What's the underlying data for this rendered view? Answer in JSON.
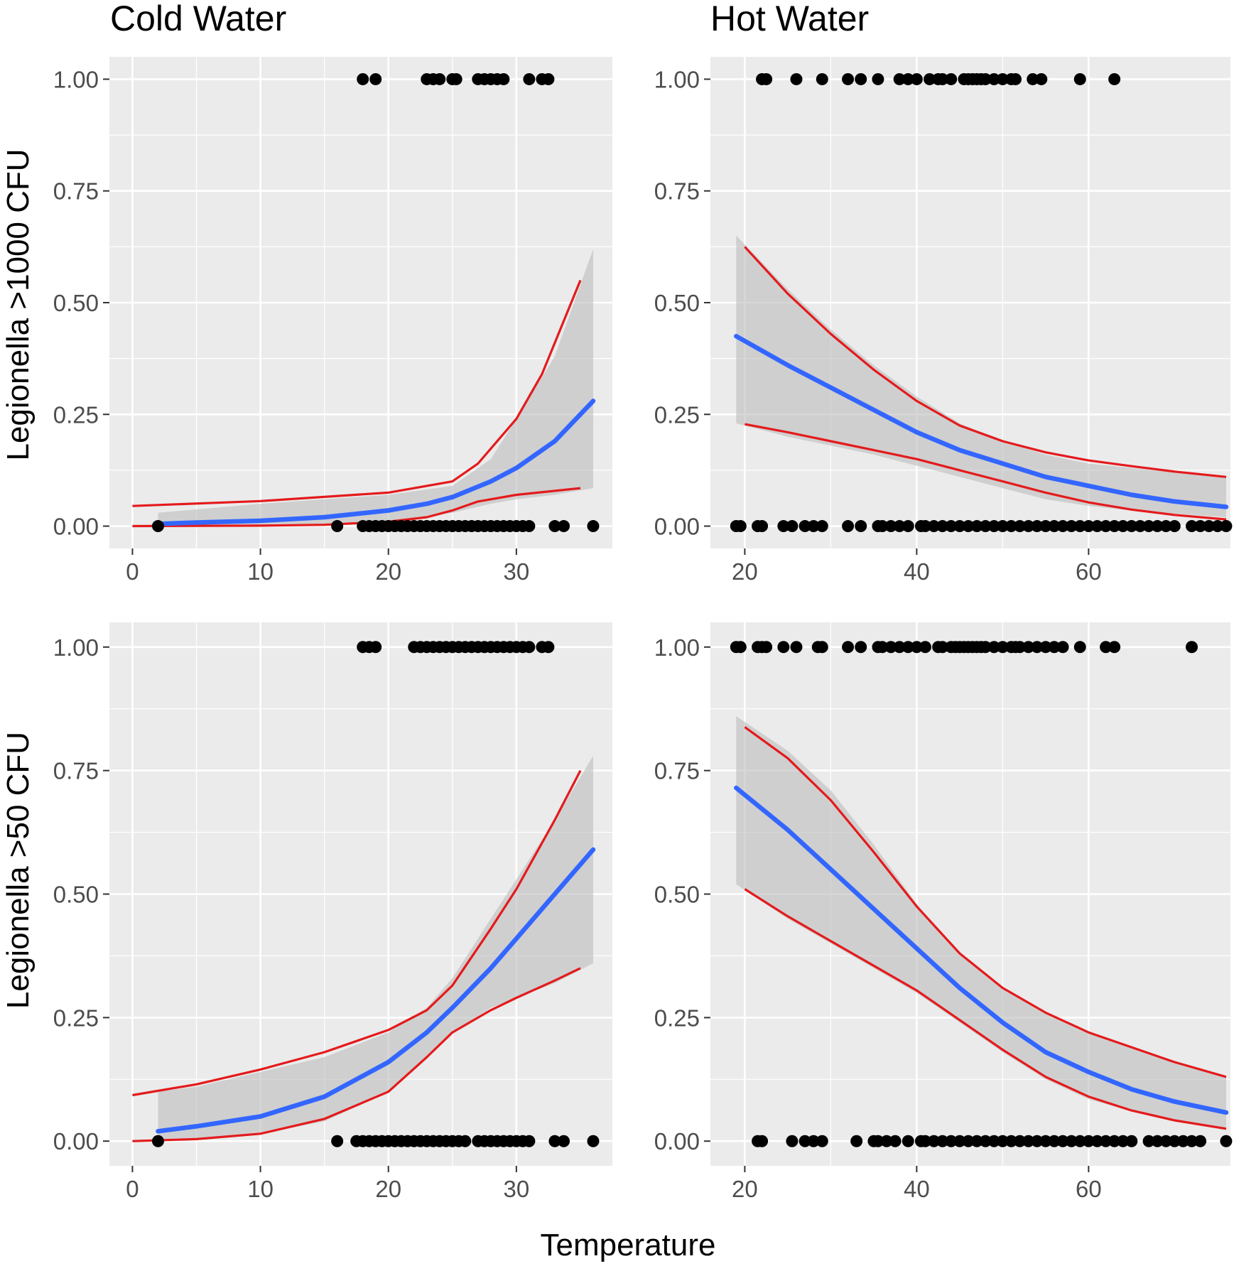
{
  "figure": {
    "xlabel": "Temperature",
    "column_titles": [
      "Cold Water",
      "Hot Water"
    ],
    "row_ylabels": [
      "Legionella >1000 CFU",
      "Legionella >50 CFU"
    ]
  },
  "colors": {
    "panel_bg": "#ebebeb",
    "grid": "#ffffff",
    "fit_line": "#3366ff",
    "ci_band": "#bdbdbd",
    "alt_ci": "#e41a1c",
    "points": "#000000",
    "tick_text": "#4d4d4d"
  },
  "chart_data": [
    {
      "type": "scatter",
      "title": "Cold Water",
      "ylabel": "Legionella >1000 CFU",
      "xlim": [
        -1.8,
        37.5
      ],
      "ylim": [
        -0.05,
        1.05
      ],
      "xticks": [
        0,
        10,
        20,
        30
      ],
      "xtick_labels": [
        "0",
        "10",
        "20",
        "30"
      ],
      "yticks": [
        0,
        0.25,
        0.5,
        0.75,
        1
      ],
      "ytick_labels": [
        "0.00",
        "0.25",
        "0.50",
        "0.75",
        "1.00"
      ],
      "points_y1": [
        18,
        19,
        23,
        23.5,
        24,
        25,
        25.3,
        27,
        27.5,
        28,
        28.5,
        29,
        31,
        32,
        32.5
      ],
      "points_y0": [
        2,
        16,
        18,
        18.5,
        19,
        19.5,
        20,
        20.5,
        21,
        21.5,
        22,
        22.5,
        23,
        23.5,
        24,
        24.5,
        25,
        25.5,
        26,
        26.5,
        27,
        27.5,
        28,
        28.5,
        29,
        29.5,
        30,
        30.5,
        31,
        33,
        33.7,
        36
      ],
      "fit": {
        "x": [
          2,
          5,
          10,
          15,
          20,
          23,
          25,
          28,
          30,
          33,
          36
        ],
        "y": [
          0.005,
          0.008,
          0.012,
          0.02,
          0.035,
          0.05,
          0.065,
          0.1,
          0.13,
          0.19,
          0.28
        ]
      },
      "band": {
        "x": [
          2,
          10,
          20,
          25,
          28,
          30,
          33,
          36
        ],
        "lower": [
          0.0,
          0.0,
          0.01,
          0.03,
          0.05,
          0.06,
          0.07,
          0.085
        ],
        "upper": [
          0.03,
          0.05,
          0.07,
          0.09,
          0.15,
          0.24,
          0.38,
          0.62
        ]
      },
      "alt_upper": {
        "x": [
          0,
          10,
          20,
          25,
          27,
          30,
          32,
          35
        ],
        "y": [
          0.045,
          0.056,
          0.075,
          0.1,
          0.14,
          0.24,
          0.34,
          0.55
        ]
      },
      "alt_lower": {
        "x": [
          0,
          10,
          15,
          20,
          23,
          25,
          27,
          30,
          35
        ],
        "y": [
          0.0,
          0.001,
          0.003,
          0.01,
          0.02,
          0.035,
          0.055,
          0.07,
          0.085
        ]
      }
    },
    {
      "type": "scatter",
      "title": "Hot Water",
      "ylabel": "Legionella >1000 CFU",
      "xlim": [
        16,
        76.5
      ],
      "ylim": [
        -0.05,
        1.05
      ],
      "xticks": [
        20,
        40,
        60
      ],
      "xtick_labels": [
        "20",
        "40",
        "60"
      ],
      "yticks": [
        0,
        0.25,
        0.5,
        0.75,
        1
      ],
      "ytick_labels": [
        "0.00",
        "0.25",
        "0.50",
        "0.75",
        "1.00"
      ],
      "points_y1": [
        22,
        22.5,
        26,
        29,
        32,
        33.5,
        35.5,
        38,
        39,
        40,
        41.5,
        42.5,
        43,
        44,
        45.5,
        46,
        46.5,
        47,
        47.5,
        48,
        49,
        50,
        51,
        51.5,
        53.5,
        54.5,
        59,
        63
      ],
      "points_y0": [
        19,
        19.5,
        21.5,
        22,
        24.5,
        25.5,
        27,
        28,
        29,
        32,
        33.5,
        35.5,
        36,
        37,
        38,
        39,
        40.5,
        41,
        42,
        43,
        44,
        45,
        46,
        47,
        48,
        49,
        50,
        51,
        52,
        53,
        54,
        55,
        56,
        57,
        58,
        59,
        60,
        61,
        62,
        63,
        64,
        65,
        66,
        67,
        68,
        69,
        70,
        72,
        73,
        74,
        75,
        76
      ],
      "fit": {
        "x": [
          19,
          25,
          30,
          35,
          40,
          45,
          50,
          55,
          60,
          65,
          70,
          76
        ],
        "y": [
          0.425,
          0.36,
          0.31,
          0.26,
          0.21,
          0.17,
          0.14,
          0.11,
          0.09,
          0.07,
          0.055,
          0.043
        ]
      },
      "band": {
        "x": [
          19,
          25,
          30,
          35,
          40,
          45,
          50,
          55,
          60,
          65,
          70,
          76
        ],
        "lower": [
          0.23,
          0.2,
          0.18,
          0.16,
          0.135,
          0.11,
          0.085,
          0.06,
          0.045,
          0.035,
          0.028,
          0.02
        ],
        "upper": [
          0.65,
          0.53,
          0.44,
          0.36,
          0.29,
          0.23,
          0.19,
          0.16,
          0.14,
          0.13,
          0.12,
          0.11
        ]
      },
      "alt_upper": {
        "x": [
          20,
          25,
          30,
          35,
          40,
          45,
          50,
          55,
          60,
          65,
          70,
          76
        ],
        "y": [
          0.625,
          0.52,
          0.43,
          0.35,
          0.28,
          0.225,
          0.19,
          0.165,
          0.147,
          0.134,
          0.122,
          0.11
        ]
      },
      "alt_lower": {
        "x": [
          20,
          25,
          30,
          35,
          40,
          45,
          50,
          55,
          60,
          65,
          70,
          76
        ],
        "y": [
          0.228,
          0.21,
          0.19,
          0.17,
          0.15,
          0.125,
          0.1,
          0.075,
          0.053,
          0.037,
          0.025,
          0.015
        ]
      }
    },
    {
      "type": "scatter",
      "title": "Cold Water",
      "ylabel": "Legionella >50 CFU",
      "xlim": [
        -1.8,
        37.5
      ],
      "ylim": [
        -0.05,
        1.05
      ],
      "xticks": [
        0,
        10,
        20,
        30
      ],
      "xtick_labels": [
        "0",
        "10",
        "20",
        "30"
      ],
      "yticks": [
        0,
        0.25,
        0.5,
        0.75,
        1
      ],
      "ytick_labels": [
        "0.00",
        "0.25",
        "0.50",
        "0.75",
        "1.00"
      ],
      "points_y1": [
        18,
        18.5,
        19,
        22,
        22.5,
        23,
        23.5,
        24,
        24.5,
        25,
        25.5,
        26,
        26.5,
        27,
        27.5,
        28,
        28.5,
        29,
        29.5,
        30,
        30.5,
        31,
        32,
        32.5
      ],
      "points_y0": [
        2,
        16,
        17.5,
        18,
        18.5,
        19,
        19.5,
        20,
        20.5,
        21,
        21.5,
        22,
        22.5,
        23,
        23.5,
        24,
        24.5,
        25,
        25.5,
        26,
        27,
        27.5,
        28,
        28.5,
        29,
        29.5,
        30,
        30.5,
        31,
        33,
        33.7,
        36
      ],
      "fit": {
        "x": [
          2,
          5,
          10,
          15,
          20,
          23,
          25,
          28,
          30,
          33,
          36
        ],
        "y": [
          0.02,
          0.03,
          0.05,
          0.09,
          0.16,
          0.22,
          0.27,
          0.35,
          0.41,
          0.5,
          0.59
        ]
      },
      "band": {
        "x": [
          2,
          5,
          10,
          15,
          20,
          23,
          25,
          28,
          30,
          33,
          36
        ],
        "lower": [
          0.0,
          0.005,
          0.015,
          0.04,
          0.1,
          0.17,
          0.22,
          0.27,
          0.29,
          0.32,
          0.36
        ],
        "upper": [
          0.1,
          0.11,
          0.14,
          0.17,
          0.22,
          0.27,
          0.33,
          0.45,
          0.53,
          0.65,
          0.78
        ]
      },
      "alt_upper": {
        "x": [
          0,
          5,
          10,
          15,
          20,
          23,
          25,
          28,
          30,
          33,
          35
        ],
        "y": [
          0.093,
          0.115,
          0.145,
          0.18,
          0.225,
          0.265,
          0.315,
          0.43,
          0.51,
          0.65,
          0.75
        ]
      },
      "alt_lower": {
        "x": [
          0,
          5,
          10,
          15,
          20,
          23,
          25,
          28,
          30,
          33,
          35
        ],
        "y": [
          0.0,
          0.004,
          0.015,
          0.045,
          0.1,
          0.17,
          0.22,
          0.265,
          0.29,
          0.325,
          0.35
        ]
      }
    },
    {
      "type": "scatter",
      "title": "Hot Water",
      "ylabel": "Legionella >50 CFU",
      "xlim": [
        16,
        76.5
      ],
      "ylim": [
        -0.05,
        1.05
      ],
      "xticks": [
        20,
        40,
        60
      ],
      "xtick_labels": [
        "20",
        "40",
        "60"
      ],
      "yticks": [
        0,
        0.25,
        0.5,
        0.75,
        1
      ],
      "ytick_labels": [
        "0.00",
        "0.25",
        "0.50",
        "0.75",
        "1.00"
      ],
      "points_y1": [
        19,
        19.5,
        21.5,
        22,
        22.5,
        24.5,
        26,
        28.5,
        29,
        32,
        33.5,
        35.5,
        36,
        37,
        38,
        39,
        40,
        41,
        42.5,
        43,
        44,
        44.5,
        45,
        45.5,
        46,
        46.5,
        47,
        47.5,
        48,
        49,
        50,
        51,
        51.5,
        52,
        53,
        54,
        55,
        56,
        57,
        59,
        62,
        63,
        72
      ],
      "points_y0": [
        21.5,
        22,
        25.5,
        27,
        28,
        29,
        33,
        35,
        35.5,
        36.5,
        37.5,
        39,
        40.5,
        41,
        42,
        43,
        44,
        45,
        46,
        47,
        48,
        49,
        50,
        51,
        52,
        53,
        54,
        55,
        56,
        57,
        58,
        59,
        60,
        61,
        62,
        63,
        64,
        65,
        67,
        68,
        69,
        70,
        71,
        72,
        73,
        76
      ],
      "fit": {
        "x": [
          19,
          25,
          30,
          35,
          40,
          45,
          50,
          55,
          60,
          65,
          70,
          76
        ],
        "y": [
          0.715,
          0.63,
          0.55,
          0.47,
          0.39,
          0.31,
          0.24,
          0.18,
          0.14,
          0.105,
          0.08,
          0.058
        ]
      },
      "band": {
        "x": [
          19,
          25,
          30,
          35,
          40,
          45,
          50,
          55,
          60,
          65,
          70,
          76
        ],
        "lower": [
          0.52,
          0.45,
          0.4,
          0.35,
          0.3,
          0.24,
          0.18,
          0.125,
          0.085,
          0.06,
          0.04,
          0.025
        ],
        "upper": [
          0.86,
          0.79,
          0.71,
          0.6,
          0.48,
          0.38,
          0.31,
          0.26,
          0.22,
          0.19,
          0.16,
          0.13
        ]
      },
      "alt_upper": {
        "x": [
          20,
          25,
          30,
          35,
          40,
          45,
          50,
          55,
          60,
          65,
          70,
          76
        ],
        "y": [
          0.838,
          0.775,
          0.69,
          0.585,
          0.475,
          0.38,
          0.31,
          0.26,
          0.22,
          0.19,
          0.16,
          0.13
        ]
      },
      "alt_lower": {
        "x": [
          20,
          25,
          30,
          35,
          40,
          45,
          50,
          55,
          60,
          65,
          70,
          76
        ],
        "y": [
          0.51,
          0.455,
          0.405,
          0.355,
          0.305,
          0.245,
          0.185,
          0.13,
          0.09,
          0.062,
          0.042,
          0.025
        ]
      }
    }
  ]
}
